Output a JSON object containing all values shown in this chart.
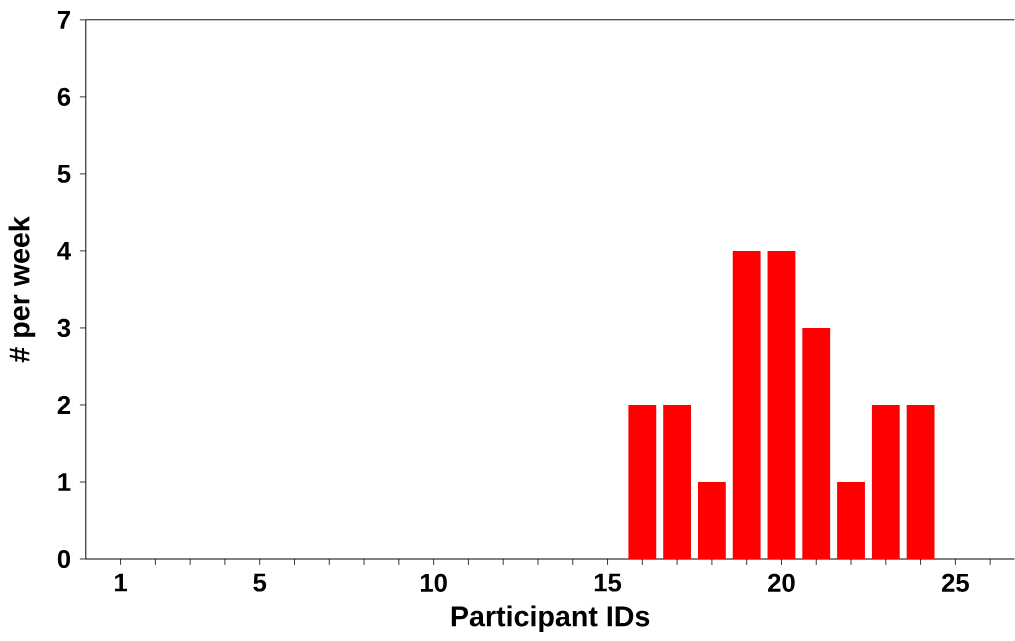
{
  "chart_data": {
    "type": "bar",
    "xlabel": "Participant IDs",
    "ylabel": "# per week",
    "x": [
      16,
      17,
      18,
      19,
      20,
      21,
      22,
      23,
      24
    ],
    "values": [
      2,
      2,
      1,
      4,
      4,
      3,
      1,
      2,
      2
    ],
    "color": "#ff0000",
    "xlim": [
      0,
      26.7
    ],
    "ylim": [
      0,
      7
    ],
    "xticks": [
      1,
      {
        "value": 2,
        "label": null
      },
      {
        "value": 3,
        "label": null
      },
      {
        "value": 4,
        "label": null
      },
      5,
      {
        "value": 6,
        "label": null
      },
      {
        "value": 7,
        "label": null
      },
      {
        "value": 8,
        "label": null
      },
      {
        "value": 9,
        "label": null
      },
      10,
      {
        "value": 11,
        "label": null
      },
      {
        "value": 12,
        "label": null
      },
      {
        "value": 13,
        "label": null
      },
      {
        "value": 14,
        "label": null
      },
      15,
      {
        "value": 16,
        "label": null
      },
      {
        "value": 17,
        "label": null
      },
      {
        "value": 18,
        "label": null
      },
      {
        "value": 19,
        "label": null
      },
      20,
      {
        "value": 21,
        "label": null
      },
      {
        "value": 22,
        "label": null
      },
      {
        "value": 23,
        "label": null
      },
      {
        "value": 24,
        "label": null
      },
      25,
      {
        "value": 26,
        "label": null
      }
    ],
    "yticks": [
      0,
      1,
      2,
      3,
      4,
      5,
      6,
      7
    ]
  }
}
